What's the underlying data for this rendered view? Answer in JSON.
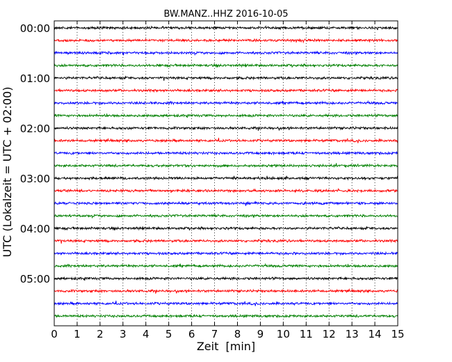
{
  "chart_data": {
    "type": "line",
    "title": "BW.MANZ..HHZ 2016-10-05",
    "xlabel": "Zeit  [min]",
    "ylabel": "UTC (Lokalzeit = UTC + 02:00)",
    "xlim": [
      0,
      15
    ],
    "x_ticks": [
      "0",
      "1",
      "2",
      "3",
      "4",
      "5",
      "6",
      "7",
      "8",
      "9",
      "10",
      "11",
      "12",
      "13",
      "14",
      "15"
    ],
    "y_ticks": [
      "00:00",
      "01:00",
      "02:00",
      "03:00",
      "04:00",
      "05:00"
    ],
    "grid": "vertical dotted lines at each minute",
    "colors": [
      "#000000",
      "#ff0000",
      "#0000ff",
      "#008000"
    ],
    "trace_start_minutes_utc": [
      0,
      15,
      30,
      45,
      60,
      75,
      90,
      105,
      120,
      135,
      150,
      165,
      180,
      195,
      210,
      225,
      240,
      255,
      270,
      285,
      300,
      315,
      330,
      345
    ]
  }
}
